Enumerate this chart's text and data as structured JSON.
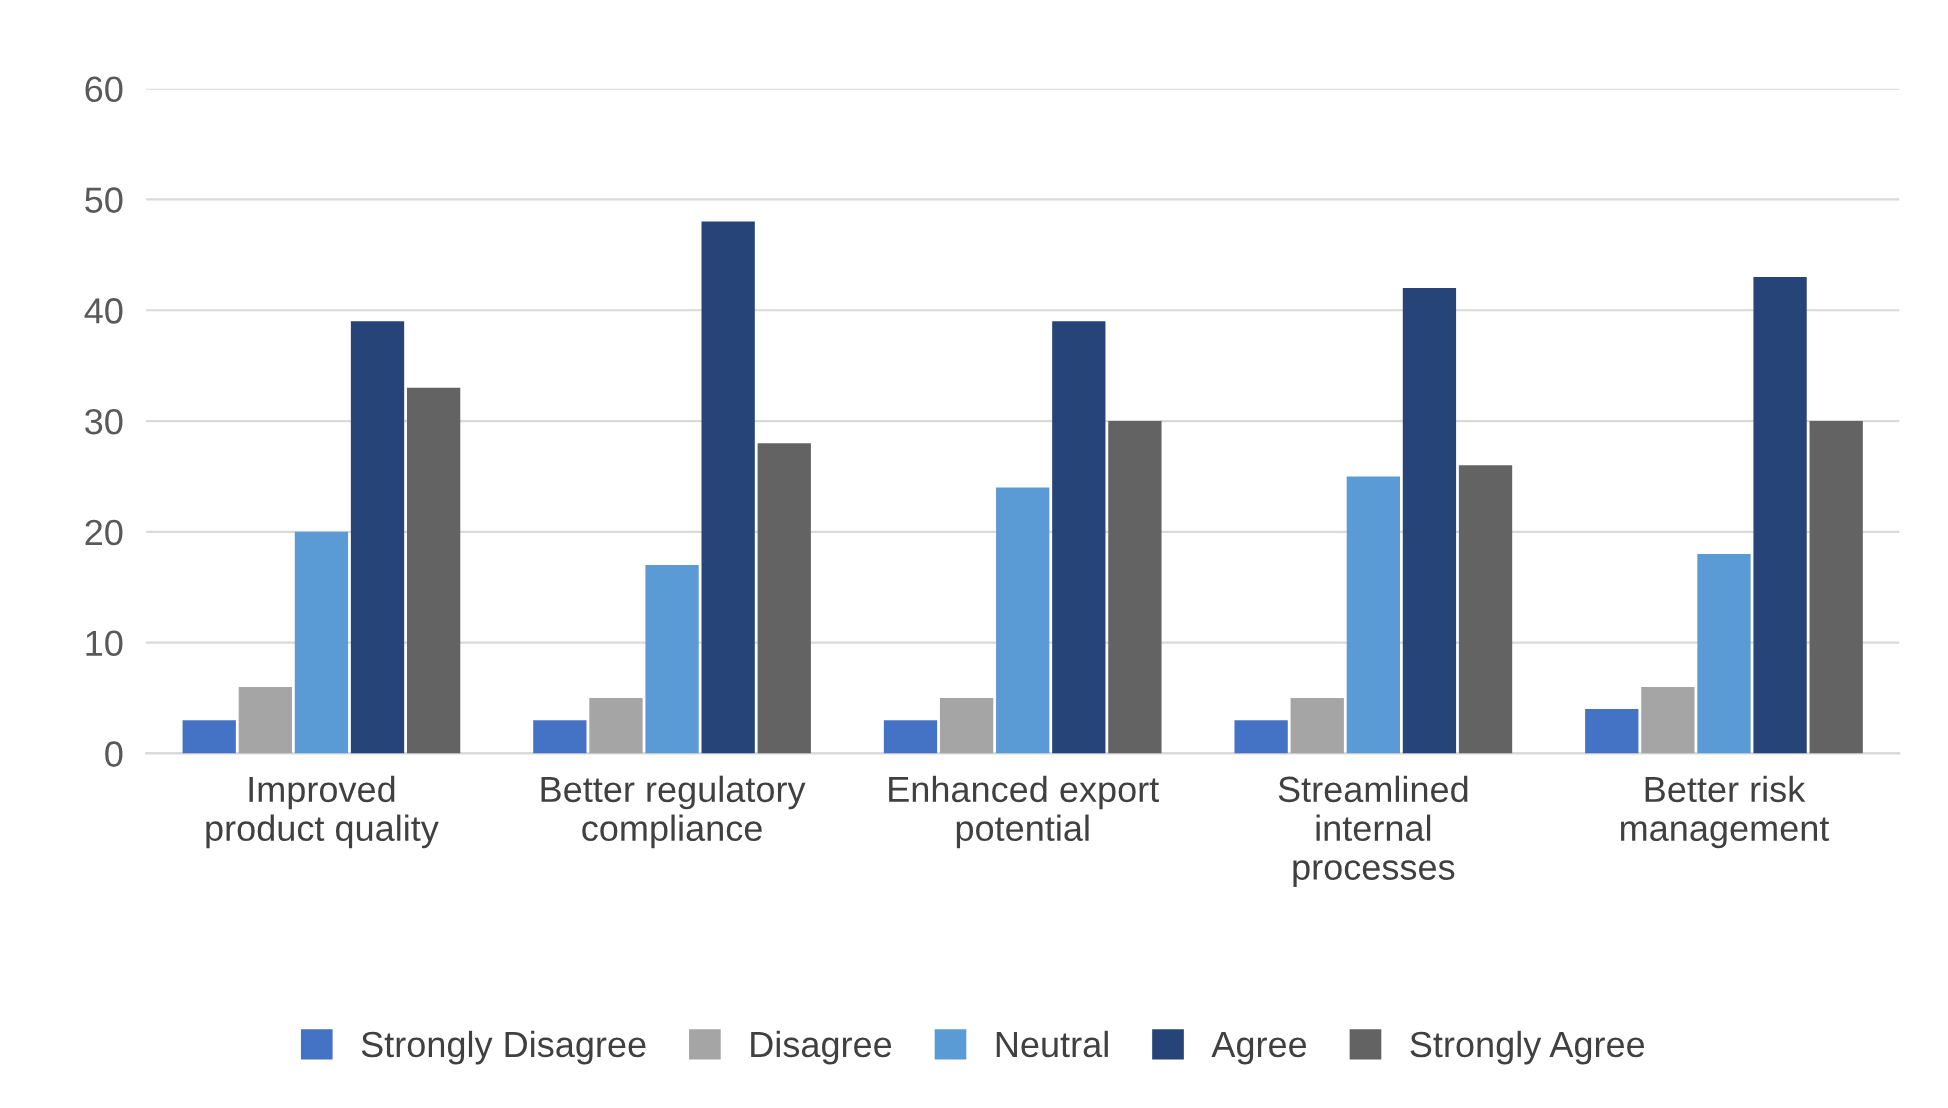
{
  "chart_data": {
    "type": "bar",
    "categories": [
      "Improved\nproduct quality",
      "Better regulatory\ncompliance",
      "Enhanced export\npotential",
      "Streamlined\ninternal\nprocesses",
      "Better risk\nmanagement"
    ],
    "series": [
      {
        "name": "Strongly Disagree",
        "color": "#4472c4",
        "values": [
          3,
          3,
          3,
          3,
          4
        ]
      },
      {
        "name": "Disagree",
        "color": "#a5a5a5",
        "values": [
          6,
          5,
          5,
          5,
          6
        ]
      },
      {
        "name": "Neutral",
        "color": "#5b9bd5",
        "values": [
          20,
          17,
          24,
          25,
          18
        ]
      },
      {
        "name": "Agree",
        "color": "#264478",
        "values": [
          39,
          48,
          39,
          42,
          43
        ]
      },
      {
        "name": "Strongly Agree",
        "color": "#636363",
        "values": [
          33,
          28,
          30,
          26,
          30
        ]
      }
    ],
    "ylim": [
      0,
      60
    ],
    "yticks": [
      0,
      10,
      20,
      30,
      40,
      50,
      60
    ],
    "grid": "y",
    "legend": "bottom"
  }
}
